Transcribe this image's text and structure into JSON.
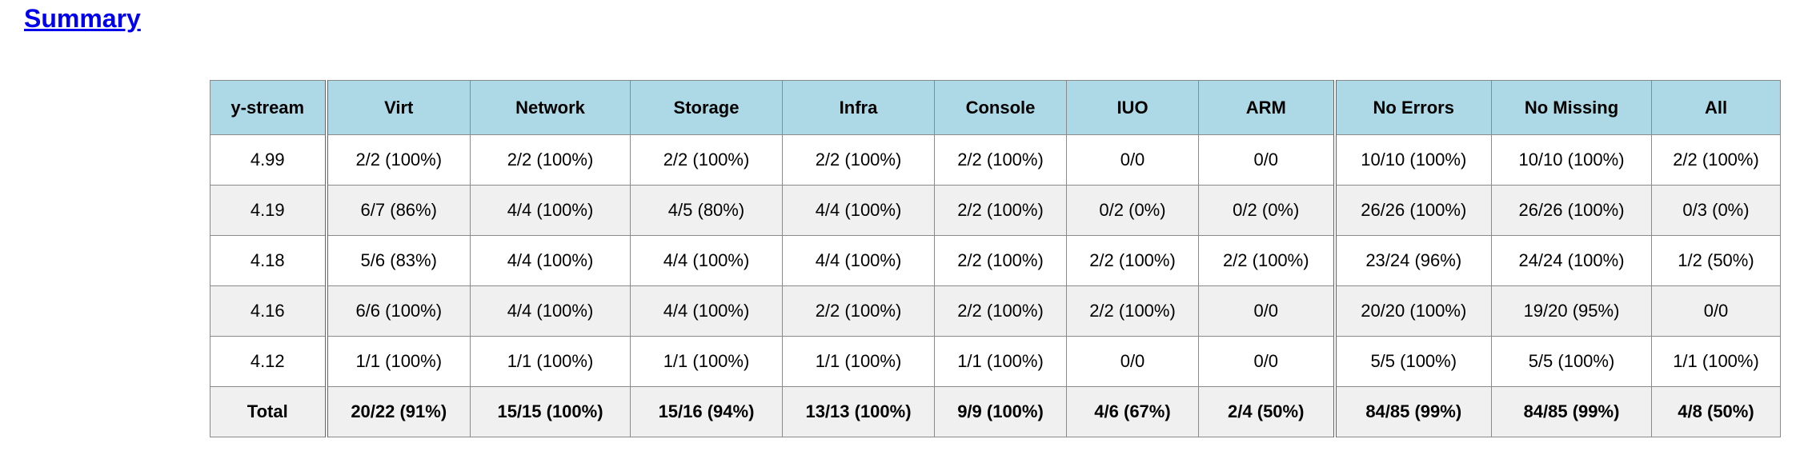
{
  "page": {
    "heading": "Summary"
  },
  "colors": {
    "link": "#0000ee",
    "header_bg": "#add8e6",
    "alt_row_bg": "#f0f0f0",
    "border_outer": "#666666",
    "border_inner": "#8a8a8a",
    "text": "#000000"
  },
  "table": {
    "columns": [
      "y-stream",
      "Virt",
      "Network",
      "Storage",
      "Infra",
      "Console",
      "IUO",
      "ARM",
      "No Errors",
      "No Missing",
      "All"
    ],
    "column_group_starts": [
      1,
      8
    ],
    "rows": [
      {
        "label": "4.99",
        "bold": false,
        "values": [
          "2/2 (100%)",
          "2/2 (100%)",
          "2/2 (100%)",
          "2/2 (100%)",
          "2/2 (100%)",
          "0/0",
          "0/0",
          "10/10 (100%)",
          "10/10 (100%)",
          "2/2 (100%)"
        ]
      },
      {
        "label": "4.19",
        "bold": false,
        "values": [
          "6/7 (86%)",
          "4/4 (100%)",
          "4/5 (80%)",
          "4/4 (100%)",
          "2/2 (100%)",
          "0/2 (0%)",
          "0/2 (0%)",
          "26/26 (100%)",
          "26/26 (100%)",
          "0/3 (0%)"
        ]
      },
      {
        "label": "4.18",
        "bold": false,
        "values": [
          "5/6 (83%)",
          "4/4 (100%)",
          "4/4 (100%)",
          "4/4 (100%)",
          "2/2 (100%)",
          "2/2 (100%)",
          "2/2 (100%)",
          "23/24 (96%)",
          "24/24 (100%)",
          "1/2 (50%)"
        ]
      },
      {
        "label": "4.16",
        "bold": false,
        "values": [
          "6/6 (100%)",
          "4/4 (100%)",
          "4/4 (100%)",
          "2/2 (100%)",
          "2/2 (100%)",
          "2/2 (100%)",
          "0/0",
          "20/20 (100%)",
          "19/20 (95%)",
          "0/0"
        ]
      },
      {
        "label": "4.12",
        "bold": false,
        "values": [
          "1/1 (100%)",
          "1/1 (100%)",
          "1/1 (100%)",
          "1/1 (100%)",
          "1/1 (100%)",
          "0/0",
          "0/0",
          "5/5 (100%)",
          "5/5 (100%)",
          "1/1 (100%)"
        ]
      },
      {
        "label": "Total",
        "bold": true,
        "values": [
          "20/22 (91%)",
          "15/15 (100%)",
          "15/16 (94%)",
          "13/13 (100%)",
          "9/9 (100%)",
          "4/6 (67%)",
          "2/4 (50%)",
          "84/85 (99%)",
          "84/85 (99%)",
          "4/8 (50%)"
        ]
      }
    ]
  }
}
